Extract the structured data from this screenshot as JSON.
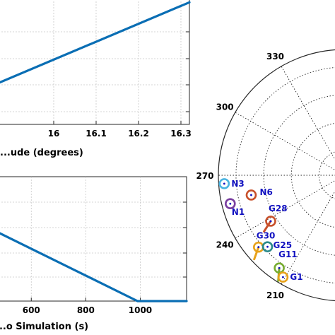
{
  "chart_data": [
    {
      "type": "line",
      "xlabel": "...ude (degrees)",
      "x_ticks": [
        "16",
        "16.1",
        "16.2",
        "16.3"
      ],
      "xlim": [
        15.87,
        16.32
      ],
      "ylim": [
        0,
        1
      ],
      "series": [
        {
          "color": "#0a6eb4",
          "points": [
            [
              15.87,
              0.33
            ],
            [
              16.32,
              0.97
            ]
          ]
        }
      ]
    },
    {
      "type": "line",
      "xlabel": "...o Simulation (s)",
      "x_ticks": [
        "600",
        "800",
        "1000"
      ],
      "xlim": [
        480,
        1170
      ],
      "ylim": [
        0,
        1
      ],
      "series": [
        {
          "color": "#0a6eb4",
          "points": [
            [
              480,
              0.55
            ],
            [
              990,
              0.0
            ],
            [
              1170,
              0.0
            ]
          ]
        }
      ]
    },
    {
      "type": "scatter",
      "subtype": "polar-skyplot",
      "azimuth_labels": [
        {
          "label": "330",
          "az": 330
        },
        {
          "label": "300",
          "az": 300
        },
        {
          "label": "270",
          "az": 270
        },
        {
          "label": "240",
          "az": 240
        },
        {
          "label": "210",
          "az": 210
        }
      ],
      "satellites": [
        {
          "label": "N3",
          "az": 266,
          "el": 4,
          "color": "#4ab3e0",
          "trail": 0
        },
        {
          "label": "N6",
          "az": 258,
          "el": 22,
          "color": "#c8502a",
          "trail": 0
        },
        {
          "label": "N1",
          "az": 256,
          "el": 6,
          "color": "#7a3fa0",
          "trail": 0
        },
        {
          "label": "G28",
          "az": 238,
          "el": 28,
          "color": "#c8502a",
          "trail": 1
        },
        {
          "label": "G30",
          "az": 230,
          "el": 10,
          "color": "#e8a21a",
          "trail": 1
        },
        {
          "label": "G25",
          "az": 227,
          "el": 15,
          "color": "#2a8a8a",
          "trail": 0
        },
        {
          "label": "G11",
          "az": 215,
          "el": 9,
          "color": "#77ac30",
          "trail": 1
        },
        {
          "label": "G1",
          "az": 211,
          "el": 5,
          "color": "#e8a21a",
          "trail": 0
        }
      ]
    }
  ],
  "colors": {
    "line": "#0a6eb4",
    "satellite_label": "#1010c0"
  }
}
